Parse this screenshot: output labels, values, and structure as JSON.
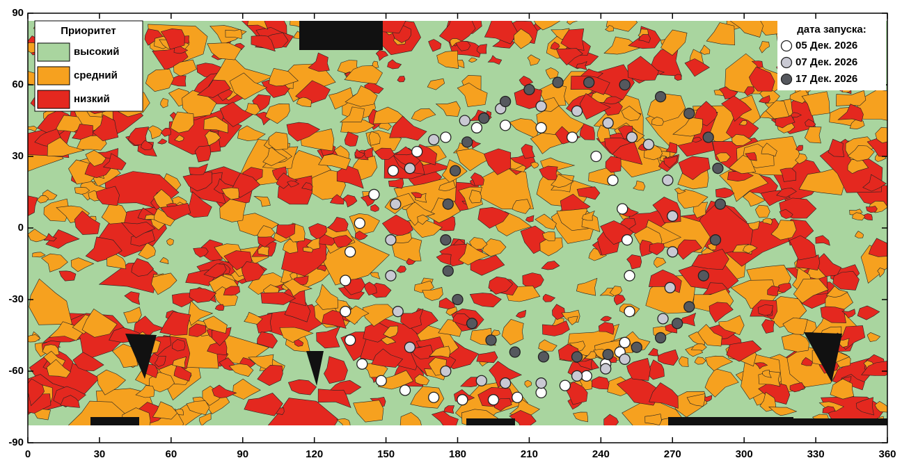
{
  "chart_data": {
    "type": "scatter",
    "xlim": [
      0,
      360
    ],
    "ylim": [
      -90,
      90
    ],
    "xticks": [
      0,
      30,
      60,
      90,
      120,
      150,
      180,
      210,
      240,
      270,
      300,
      330,
      360
    ],
    "yticks": [
      -90,
      -60,
      -30,
      0,
      30,
      60,
      90
    ],
    "map_legend": {
      "title": "Приоритет",
      "items": [
        {
          "label": "высокий",
          "color": "#a9d59f"
        },
        {
          "label": "средний",
          "color": "#f6a11f"
        },
        {
          "label": "низкий",
          "color": "#e4281f"
        }
      ]
    },
    "legend_title": "дата запуска:",
    "series": [
      {
        "name": "05 Дек. 2026",
        "color": "#ffffff",
        "x": [
          250,
          252,
          252,
          251,
          249,
          245,
          238,
          228,
          215,
          200,
          188,
          175,
          163,
          153,
          145,
          139,
          135,
          133,
          133,
          135,
          140,
          148,
          158,
          170,
          182,
          195,
          205,
          215,
          225,
          234,
          242,
          248
        ],
        "values": [
          -48,
          -35,
          -20,
          -5,
          8,
          20,
          30,
          38,
          42,
          43,
          42,
          38,
          32,
          24,
          14,
          2,
          -10,
          -22,
          -35,
          -47,
          -57,
          -64,
          -68,
          -71,
          -72,
          -72,
          -71,
          -69,
          -66,
          -62,
          -57,
          -52
        ]
      },
      {
        "name": "07 Дек. 2026",
        "color": "#c9c9d3",
        "x": [
          266,
          269,
          270,
          270,
          268,
          260,
          253,
          243,
          230,
          215,
          198,
          183,
          170,
          160,
          154,
          152,
          152,
          155,
          160,
          175,
          190,
          200,
          215,
          230,
          242,
          250
        ],
        "values": [
          -38,
          -25,
          -10,
          5,
          20,
          35,
          38,
          44,
          49,
          51,
          50,
          45,
          37,
          25,
          10,
          -5,
          -20,
          -35,
          -50,
          -60,
          -64,
          -65,
          -65,
          -62,
          -59,
          -55
        ]
      },
      {
        "name": "17 Дек. 2026",
        "color": "#55585e",
        "x": [
          277,
          283,
          288,
          290,
          289,
          285,
          277,
          265,
          250,
          235,
          222,
          210,
          200,
          191,
          184,
          179,
          176,
          175,
          176,
          180,
          186,
          194,
          204,
          216,
          230,
          243,
          255,
          265,
          272
        ],
        "values": [
          -33,
          -20,
          -5,
          10,
          25,
          38,
          48,
          55,
          60,
          61,
          61,
          58,
          53,
          46,
          36,
          24,
          10,
          -5,
          -18,
          -30,
          -40,
          -47,
          -52,
          -54,
          -54,
          -53,
          -50,
          -46,
          -40
        ]
      }
    ]
  }
}
